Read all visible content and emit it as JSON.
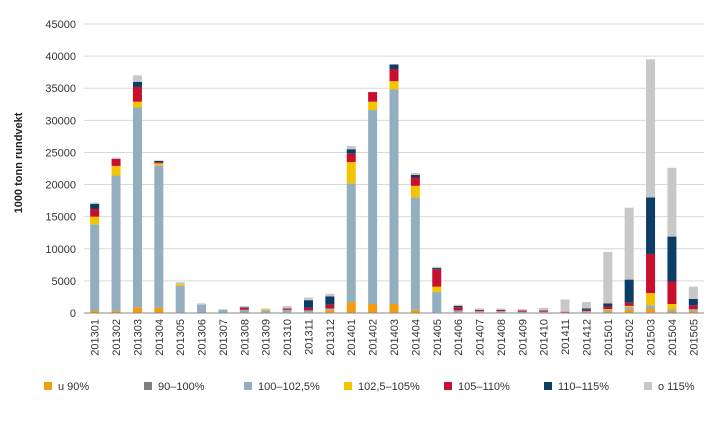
{
  "chart_data": {
    "type": "bar",
    "stacked": true,
    "title": "",
    "xlabel": "",
    "ylabel": "1000 tonn rundvekt",
    "ylim": [
      0,
      45000
    ],
    "yticks": [
      0,
      5000,
      10000,
      15000,
      20000,
      25000,
      30000,
      35000,
      40000,
      45000
    ],
    "grid": true,
    "legend_position": "bottom",
    "categories": [
      "201301",
      "201302",
      "201303",
      "201304",
      "201305",
      "201306",
      "201307",
      "201308",
      "201309",
      "201310",
      "201311",
      "201312",
      "201401",
      "201402",
      "201403",
      "201404",
      "201405",
      "201406",
      "201407",
      "201408",
      "201409",
      "201410",
      "201411",
      "201412",
      "201501",
      "201502",
      "201503",
      "201504",
      "201505"
    ],
    "series": [
      {
        "name": "u 90%",
        "color": "#f39c12",
        "values": [
          400,
          300,
          900,
          800,
          100,
          0,
          0,
          0,
          100,
          100,
          100,
          500,
          1700,
          1400,
          1400,
          500,
          100,
          100,
          100,
          100,
          100,
          100,
          0,
          100,
          300,
          500,
          700,
          300,
          300
        ]
      },
      {
        "name": "90–100%",
        "color": "#7f7f7f",
        "values": [
          0,
          0,
          0,
          0,
          0,
          0,
          0,
          0,
          0,
          0,
          0,
          0,
          0,
          0,
          0,
          0,
          0,
          0,
          0,
          0,
          0,
          0,
          0,
          0,
          0,
          0,
          0,
          0,
          0
        ]
      },
      {
        "name": "100–102,5%",
        "color": "#93aebf",
        "values": [
          13400,
          21100,
          31100,
          22200,
          4100,
          1300,
          500,
          500,
          300,
          400,
          300,
          200,
          18500,
          30200,
          33400,
          17500,
          3200,
          300,
          200,
          200,
          100,
          100,
          100,
          200,
          200,
          400,
          500,
          300,
          300
        ]
      },
      {
        "name": "102,5–105%",
        "color": "#f5c400",
        "values": [
          1200,
          1500,
          900,
          300,
          300,
          0,
          0,
          0,
          200,
          0,
          0,
          0,
          3300,
          1300,
          1300,
          1800,
          800,
          0,
          0,
          0,
          0,
          0,
          0,
          0,
          100,
          200,
          1900,
          800,
          0
        ]
      },
      {
        "name": "105–110%",
        "color": "#c8102e",
        "values": [
          1200,
          1100,
          2300,
          200,
          0,
          0,
          0,
          300,
          0,
          200,
          400,
          600,
          1300,
          1500,
          1900,
          1300,
          2700,
          500,
          200,
          200,
          200,
          200,
          100,
          200,
          400,
          500,
          6100,
          3500,
          600
        ]
      },
      {
        "name": "110–115%",
        "color": "#0b3d66",
        "values": [
          800,
          0,
          800,
          200,
          0,
          0,
          0,
          100,
          0,
          0,
          1200,
          1300,
          700,
          0,
          700,
          400,
          200,
          200,
          0,
          0,
          0,
          0,
          0,
          200,
          500,
          3600,
          8800,
          7000,
          1000
        ]
      },
      {
        "name": "o 115%",
        "color": "#c8c8c8",
        "values": [
          200,
          200,
          1000,
          0,
          300,
          200,
          100,
          200,
          100,
          400,
          400,
          400,
          500,
          0,
          0,
          300,
          200,
          200,
          200,
          200,
          200,
          400,
          1900,
          1000,
          8000,
          11200,
          21500,
          10700,
          1900
        ]
      }
    ]
  }
}
